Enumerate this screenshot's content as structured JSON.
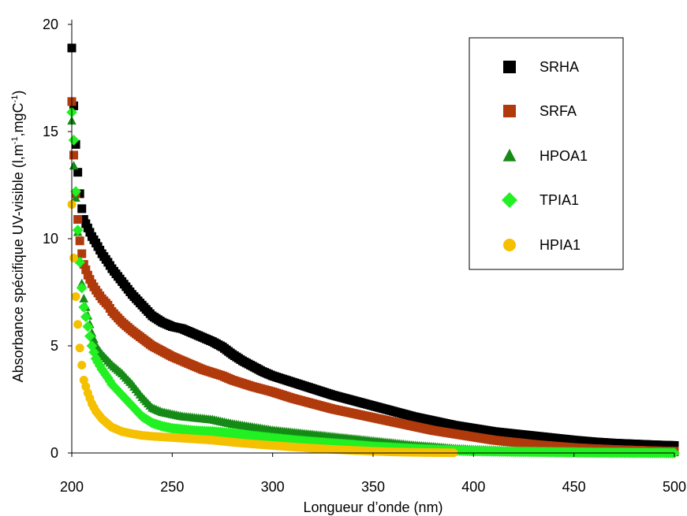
{
  "chart_data": {
    "type": "scatter",
    "xlabel": "Longueur d’onde (nm)",
    "ylabel": {
      "prefix": "Absorbance spécifique UV-visible (l,m",
      "sup1": "-1",
      "middle": ",mgC",
      "sup2": "-1",
      "suffix": ")"
    },
    "xlim": [
      200,
      500
    ],
    "ylim": [
      0,
      20
    ],
    "xticks": [
      200,
      250,
      300,
      350,
      400,
      450,
      500
    ],
    "yticks": [
      0,
      5,
      10,
      15,
      20
    ],
    "grid": false,
    "legend_position": "top-right",
    "series": [
      {
        "name": "SRHA",
        "color": "#000000",
        "marker": "square",
        "points": [
          [
            200,
            18.9
          ],
          [
            201,
            16.2
          ],
          [
            202,
            14.4
          ],
          [
            203,
            13.1
          ],
          [
            204,
            12.1
          ],
          [
            205,
            11.4
          ],
          [
            206,
            10.9
          ],
          [
            208,
            10.5
          ],
          [
            210,
            10.1
          ],
          [
            212,
            9.8
          ],
          [
            215,
            9.3
          ],
          [
            218,
            8.9
          ],
          [
            220,
            8.6
          ],
          [
            225,
            8.0
          ],
          [
            230,
            7.4
          ],
          [
            235,
            6.9
          ],
          [
            240,
            6.4
          ],
          [
            245,
            6.1
          ],
          [
            250,
            5.9
          ],
          [
            255,
            5.8
          ],
          [
            260,
            5.6
          ],
          [
            265,
            5.4
          ],
          [
            270,
            5.2
          ],
          [
            275,
            4.95
          ],
          [
            280,
            4.6
          ],
          [
            285,
            4.3
          ],
          [
            290,
            4.05
          ],
          [
            295,
            3.8
          ],
          [
            300,
            3.6
          ],
          [
            310,
            3.3
          ],
          [
            320,
            3.0
          ],
          [
            330,
            2.7
          ],
          [
            340,
            2.45
          ],
          [
            350,
            2.2
          ],
          [
            360,
            1.95
          ],
          [
            370,
            1.7
          ],
          [
            380,
            1.5
          ],
          [
            390,
            1.3
          ],
          [
            400,
            1.15
          ],
          [
            410,
            1.0
          ],
          [
            420,
            0.9
          ],
          [
            430,
            0.8
          ],
          [
            440,
            0.7
          ],
          [
            450,
            0.6
          ],
          [
            460,
            0.52
          ],
          [
            470,
            0.46
          ],
          [
            480,
            0.42
          ],
          [
            490,
            0.38
          ],
          [
            500,
            0.35
          ]
        ]
      },
      {
        "name": "SRFA",
        "color": "#B03A0C",
        "marker": "square",
        "points": [
          [
            200,
            16.4
          ],
          [
            201,
            13.9
          ],
          [
            202,
            12.1
          ],
          [
            203,
            10.9
          ],
          [
            204,
            9.9
          ],
          [
            205,
            9.3
          ],
          [
            206,
            8.8
          ],
          [
            208,
            8.3
          ],
          [
            210,
            7.9
          ],
          [
            212,
            7.6
          ],
          [
            215,
            7.2
          ],
          [
            218,
            6.9
          ],
          [
            220,
            6.6
          ],
          [
            225,
            6.1
          ],
          [
            230,
            5.7
          ],
          [
            235,
            5.35
          ],
          [
            240,
            5.0
          ],
          [
            245,
            4.75
          ],
          [
            250,
            4.5
          ],
          [
            255,
            4.3
          ],
          [
            260,
            4.1
          ],
          [
            265,
            3.9
          ],
          [
            270,
            3.75
          ],
          [
            275,
            3.6
          ],
          [
            280,
            3.4
          ],
          [
            290,
            3.1
          ],
          [
            300,
            2.85
          ],
          [
            310,
            2.55
          ],
          [
            320,
            2.3
          ],
          [
            330,
            2.05
          ],
          [
            340,
            1.85
          ],
          [
            350,
            1.65
          ],
          [
            360,
            1.45
          ],
          [
            370,
            1.25
          ],
          [
            380,
            1.05
          ],
          [
            390,
            0.9
          ],
          [
            400,
            0.75
          ],
          [
            410,
            0.6
          ],
          [
            420,
            0.5
          ],
          [
            430,
            0.4
          ],
          [
            440,
            0.32
          ],
          [
            450,
            0.25
          ],
          [
            460,
            0.2
          ],
          [
            470,
            0.16
          ],
          [
            480,
            0.13
          ],
          [
            490,
            0.1
          ],
          [
            500,
            0.08
          ]
        ]
      },
      {
        "name": "HPOA1",
        "color": "#168A16",
        "marker": "triangle",
        "points": [
          [
            200,
            15.5
          ],
          [
            201,
            13.4
          ],
          [
            202,
            11.9
          ],
          [
            203,
            10.3
          ],
          [
            204,
            9.0
          ],
          [
            205,
            7.9
          ],
          [
            206,
            7.2
          ],
          [
            208,
            6.4
          ],
          [
            210,
            5.6
          ],
          [
            212,
            5.0
          ],
          [
            215,
            4.6
          ],
          [
            218,
            4.3
          ],
          [
            220,
            4.1
          ],
          [
            225,
            3.7
          ],
          [
            230,
            3.2
          ],
          [
            235,
            2.6
          ],
          [
            240,
            2.1
          ],
          [
            245,
            1.9
          ],
          [
            250,
            1.8
          ],
          [
            255,
            1.7
          ],
          [
            260,
            1.65
          ],
          [
            265,
            1.6
          ],
          [
            270,
            1.55
          ],
          [
            275,
            1.45
          ],
          [
            280,
            1.35
          ],
          [
            290,
            1.2
          ],
          [
            300,
            1.05
          ],
          [
            310,
            0.95
          ],
          [
            320,
            0.85
          ],
          [
            330,
            0.75
          ],
          [
            340,
            0.65
          ],
          [
            350,
            0.55
          ],
          [
            360,
            0.45
          ],
          [
            370,
            0.35
          ],
          [
            380,
            0.28
          ],
          [
            390,
            0.2
          ],
          [
            400,
            0.15
          ],
          [
            420,
            0.1
          ],
          [
            440,
            0.07
          ],
          [
            460,
            0.05
          ],
          [
            480,
            0.03
          ],
          [
            500,
            0.02
          ]
        ]
      },
      {
        "name": "TPIA1",
        "color": "#22F022",
        "marker": "diamond",
        "points": [
          [
            200,
            15.9
          ],
          [
            201,
            14.6
          ],
          [
            202,
            12.2
          ],
          [
            203,
            10.4
          ],
          [
            204,
            8.9
          ],
          [
            205,
            7.7
          ],
          [
            206,
            6.8
          ],
          [
            208,
            5.9
          ],
          [
            210,
            5.0
          ],
          [
            212,
            4.4
          ],
          [
            215,
            3.9
          ],
          [
            218,
            3.5
          ],
          [
            220,
            3.2
          ],
          [
            225,
            2.7
          ],
          [
            230,
            2.2
          ],
          [
            235,
            1.7
          ],
          [
            240,
            1.4
          ],
          [
            245,
            1.25
          ],
          [
            250,
            1.15
          ],
          [
            255,
            1.1
          ],
          [
            260,
            1.05
          ],
          [
            265,
            1.02
          ],
          [
            270,
            1.0
          ],
          [
            280,
            0.92
          ],
          [
            290,
            0.8
          ],
          [
            300,
            0.7
          ],
          [
            310,
            0.6
          ],
          [
            320,
            0.52
          ],
          [
            330,
            0.45
          ],
          [
            340,
            0.38
          ],
          [
            350,
            0.3
          ],
          [
            360,
            0.25
          ],
          [
            370,
            0.2
          ],
          [
            380,
            0.16
          ],
          [
            390,
            0.12
          ],
          [
            400,
            0.09
          ],
          [
            420,
            0.06
          ],
          [
            440,
            0.04
          ],
          [
            460,
            0.02
          ],
          [
            480,
            0.01
          ],
          [
            500,
            0.0
          ]
        ]
      },
      {
        "name": "HPIA1",
        "color": "#F5C000",
        "marker": "circle",
        "points": [
          [
            200,
            11.6
          ],
          [
            201,
            9.1
          ],
          [
            202,
            7.3
          ],
          [
            203,
            6.0
          ],
          [
            204,
            4.9
          ],
          [
            205,
            4.1
          ],
          [
            206,
            3.4
          ],
          [
            208,
            2.8
          ],
          [
            210,
            2.3
          ],
          [
            212,
            1.95
          ],
          [
            215,
            1.6
          ],
          [
            218,
            1.35
          ],
          [
            220,
            1.2
          ],
          [
            225,
            1.0
          ],
          [
            230,
            0.9
          ],
          [
            235,
            0.82
          ],
          [
            240,
            0.78
          ],
          [
            250,
            0.72
          ],
          [
            260,
            0.66
          ],
          [
            270,
            0.6
          ],
          [
            280,
            0.5
          ],
          [
            290,
            0.42
          ],
          [
            300,
            0.35
          ],
          [
            310,
            0.28
          ],
          [
            320,
            0.22
          ],
          [
            330,
            0.17
          ],
          [
            340,
            0.12
          ],
          [
            350,
            0.08
          ],
          [
            360,
            0.05
          ],
          [
            370,
            0.03
          ],
          [
            380,
            0.02
          ],
          [
            390,
            0.01
          ]
        ]
      }
    ]
  }
}
